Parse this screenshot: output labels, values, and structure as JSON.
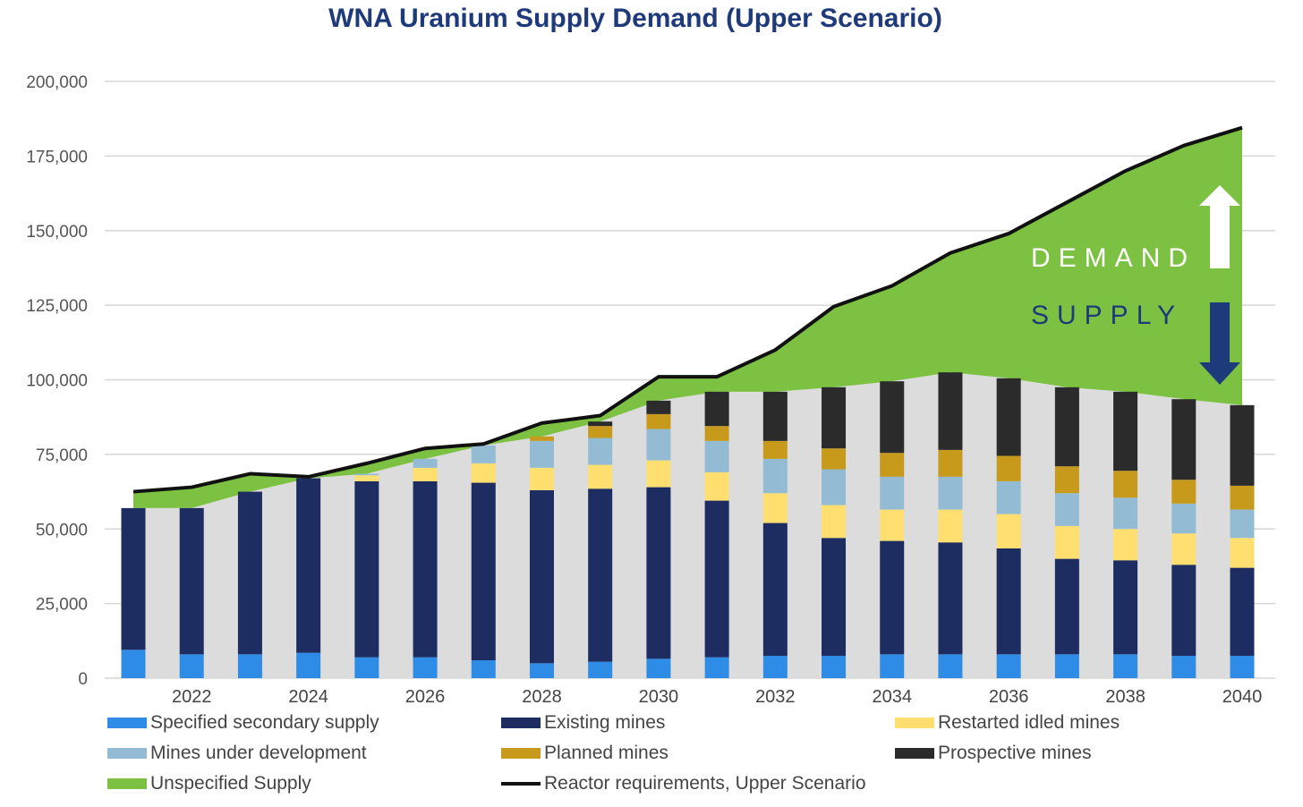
{
  "colors": {
    "specified_secondary": "#2f8ce6",
    "existing": "#1d2d62",
    "restarted": "#ffdf70",
    "under_dev": "#93bcd4",
    "planned": "#c89a1c",
    "prospective": "#2b2b2b",
    "unspecified": "#7dc142",
    "reactor": "#111111",
    "background_band": "#dcdcdc",
    "grid": "#d6d6d6",
    "title": "#1f3a7a",
    "demand_text": "#ffffff",
    "supply_text": "#1d3a7a"
  },
  "annotations": {
    "demand": "DEMAND",
    "supply": "SUPPLY"
  },
  "chart_data": {
    "type": "bar",
    "title": "WNA Uranium Supply Demand (Upper Scenario)",
    "xlabel": "",
    "ylabel": "",
    "ylim": [
      0,
      200000
    ],
    "yticks": [
      0,
      25000,
      50000,
      75000,
      100000,
      125000,
      150000,
      175000,
      200000
    ],
    "ytick_labels": [
      "0",
      "25,000",
      "50,000",
      "75,000",
      "100,000",
      "125,000",
      "150,000",
      "175,000",
      "200,000"
    ],
    "x": [
      2021,
      2022,
      2023,
      2024,
      2025,
      2026,
      2027,
      2028,
      2029,
      2030,
      2031,
      2032,
      2033,
      2034,
      2035,
      2036,
      2037,
      2038,
      2039,
      2040
    ],
    "xtick_labels": [
      "2022",
      "2024",
      "2026",
      "2028",
      "2030",
      "2032",
      "2034",
      "2036",
      "2038",
      "2040"
    ],
    "series": [
      {
        "name": "Specified secondary supply",
        "key": "specified_secondary",
        "kind": "bar",
        "values": [
          9500,
          8000,
          8000,
          8500,
          7000,
          7000,
          6000,
          5000,
          5500,
          6500,
          7000,
          7500,
          7500,
          8000,
          8000,
          8000,
          8000,
          8000,
          7500,
          7500
        ]
      },
      {
        "name": "Existing mines",
        "key": "existing",
        "kind": "bar",
        "values": [
          47500,
          49000,
          54500,
          58500,
          59000,
          59000,
          59500,
          58000,
          58000,
          57500,
          52500,
          44500,
          39500,
          38000,
          37500,
          35500,
          32000,
          31500,
          30500,
          29500
        ]
      },
      {
        "name": "Restarted idled mines",
        "key": "restarted",
        "kind": "bar",
        "values": [
          0,
          0,
          0,
          0,
          2000,
          4500,
          6500,
          7500,
          8000,
          9000,
          9500,
          10000,
          11000,
          10500,
          11000,
          11500,
          11000,
          10500,
          10500,
          10000
        ]
      },
      {
        "name": "Mines under development",
        "key": "under_dev",
        "kind": "bar",
        "values": [
          0,
          0,
          0,
          0,
          500,
          3000,
          6000,
          9000,
          9000,
          10500,
          10500,
          11500,
          12000,
          11000,
          11000,
          11000,
          11000,
          10500,
          10000,
          9500
        ]
      },
      {
        "name": "Planned mines",
        "key": "planned",
        "kind": "bar",
        "values": [
          0,
          0,
          0,
          0,
          0,
          0,
          0,
          1500,
          4000,
          5000,
          5000,
          6000,
          7000,
          8000,
          9000,
          8500,
          9000,
          9000,
          8000,
          8000
        ]
      },
      {
        "name": "Prospective mines",
        "key": "prospective",
        "kind": "bar",
        "values": [
          0,
          0,
          0,
          0,
          0,
          0,
          0,
          0,
          1500,
          4500,
          11500,
          16500,
          20500,
          24000,
          26000,
          26000,
          26500,
          26500,
          27000,
          27000
        ]
      },
      {
        "name": "Unspecified Supply",
        "key": "unspecified",
        "kind": "area",
        "values": [
          5000,
          6500,
          5500,
          500,
          3500,
          3000,
          500,
          4500,
          2000,
          8500,
          4500,
          14000,
          27500,
          32000,
          40000,
          48500,
          62000,
          74500,
          85000,
          93000
        ]
      },
      {
        "name": "Reactor requirements, Upper Scenario",
        "key": "reactor",
        "kind": "line",
        "values": [
          62500,
          64000,
          68500,
          67500,
          72000,
          77000,
          78500,
          85500,
          88000,
          101000,
          101000,
          110000,
          124500,
          131500,
          142500,
          149000,
          159500,
          170000,
          178500,
          184500
        ]
      }
    ],
    "legend": {
      "position": "bottom",
      "items": [
        "Specified secondary supply",
        "Existing mines",
        "Restarted idled mines",
        "Mines under development",
        "Planned mines",
        "Prospective mines",
        "Unspecified Supply",
        "Reactor requirements, Upper Scenario"
      ]
    }
  }
}
